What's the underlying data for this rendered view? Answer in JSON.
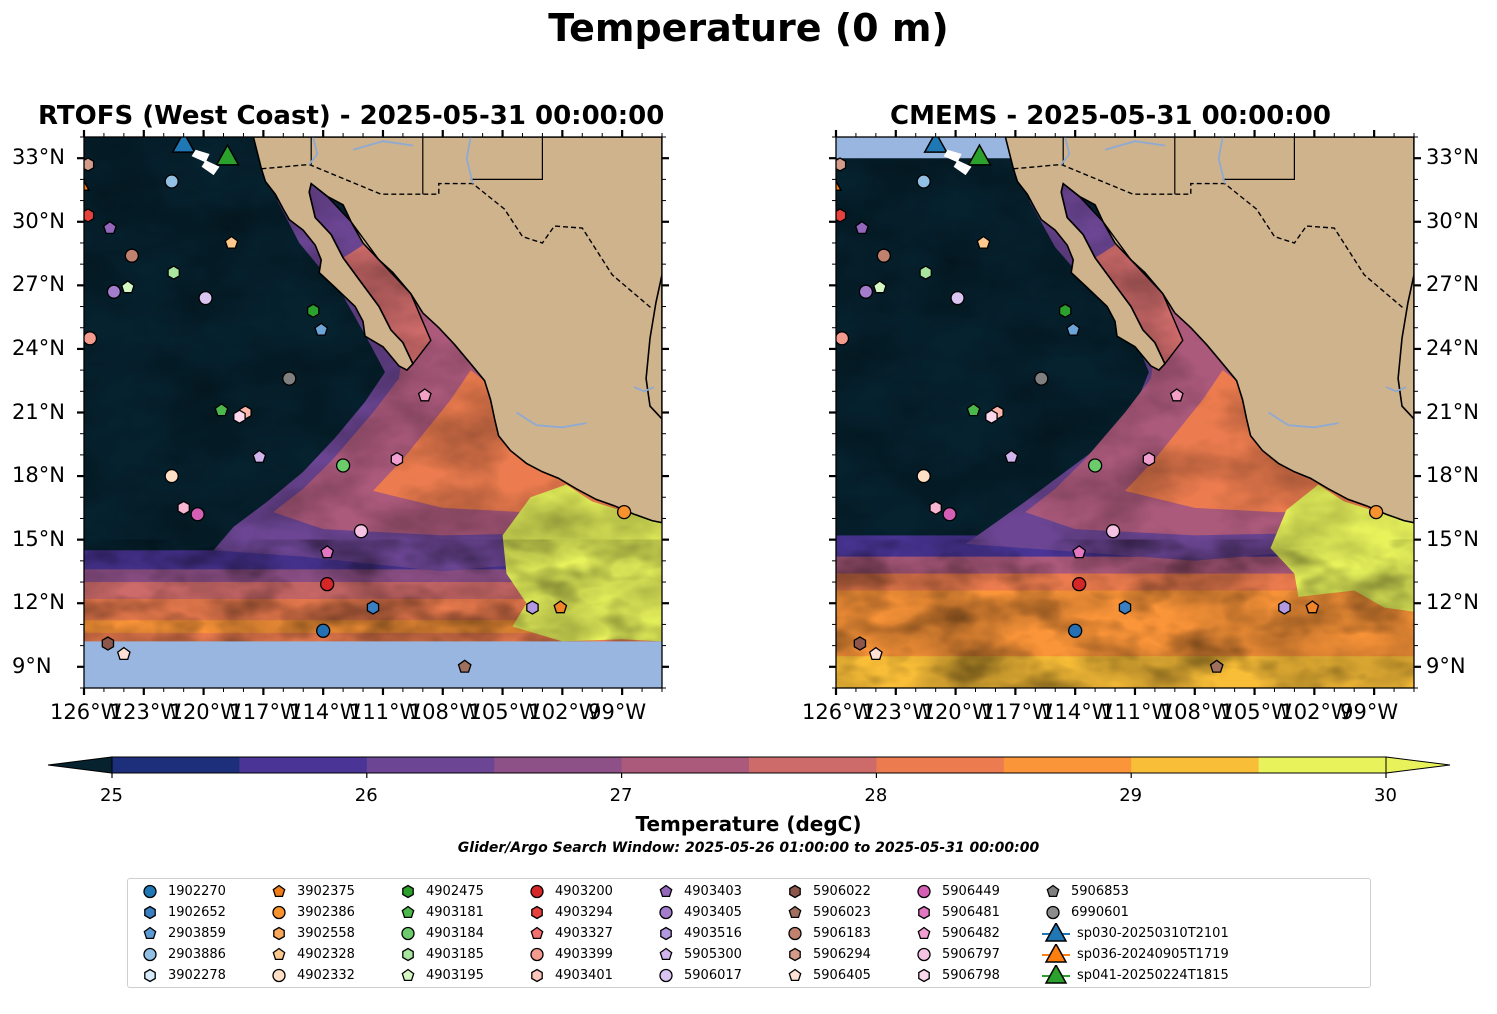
{
  "figure": {
    "suptitle": "Temperature (0 m)",
    "colors": {
      "land": "#cfb38c",
      "nodata": "#98b6e0",
      "coast": "#000000",
      "rivers": "#8eaad3"
    }
  },
  "panels": [
    {
      "title": "RTOFS (West Coast) - 2025-05-31 00:00:00",
      "variant": "rtofs"
    },
    {
      "title": "CMEMS - 2025-05-31 00:00:00",
      "variant": "cmems"
    }
  ],
  "axes": {
    "lon_ticks": [
      "126°W",
      "123°W",
      "120°W",
      "117°W",
      "114°W",
      "111°W",
      "108°W",
      "105°W",
      "102°W",
      "99°W"
    ],
    "lat_ticks": [
      "33°N",
      "30°N",
      "27°N",
      "24°N",
      "21°N",
      "18°N",
      "15°N",
      "12°N",
      "9°N"
    ],
    "lon_range": [
      -126,
      -97
    ],
    "lat_range": [
      8,
      34
    ]
  },
  "colorbar": {
    "ticks": [
      "25",
      "26",
      "27",
      "28",
      "29",
      "30"
    ],
    "range": [
      25,
      30
    ],
    "step": 0.5,
    "colors": [
      "#06222f",
      "#1d2f7b",
      "#4a3596",
      "#6c4694",
      "#8d5087",
      "#ac5a7c",
      "#cd6a6a",
      "#ec7c4f",
      "#fb9539",
      "#f9be38",
      "#e8f35c"
    ],
    "label": "Temperature (degC)",
    "subtitle": "Glider/Argo Search Window: 2025-05-26 01:00:00 to 2025-05-31 00:00:00"
  },
  "markers": [
    {
      "lon": -114.0,
      "lat": 10.7,
      "shape": "circle",
      "color": "#2470b4"
    },
    {
      "lon": -111.5,
      "lat": 11.8,
      "shape": "hexagon",
      "color": "#3a7fc2"
    },
    {
      "lon": -114.1,
      "lat": 24.9,
      "shape": "pentagon",
      "color": "#6da5d8"
    },
    {
      "lon": -121.6,
      "lat": 31.9,
      "shape": "circle",
      "color": "#92c0e4"
    },
    {
      "lon": -102.1,
      "lat": 11.8,
      "shape": "pentagon",
      "color": "#f28527"
    },
    {
      "lon": -98.9,
      "lat": 16.3,
      "shape": "circle",
      "color": "#f7922e"
    },
    {
      "lon": -118.6,
      "lat": 29.0,
      "shape": "pentagon",
      "color": "#fcc88b"
    },
    {
      "lon": -121.6,
      "lat": 18.0,
      "shape": "circle",
      "color": "#fde0c5"
    },
    {
      "lon": -114.5,
      "lat": 25.8,
      "shape": "hexagon",
      "color": "#2ca02c"
    },
    {
      "lon": -119.1,
      "lat": 21.1,
      "shape": "pentagon",
      "color": "#4cb84c"
    },
    {
      "lon": -113.0,
      "lat": 18.5,
      "shape": "circle",
      "color": "#6ccc6c"
    },
    {
      "lon": -121.5,
      "lat": 27.6,
      "shape": "hexagon",
      "color": "#a8e6a0"
    },
    {
      "lon": -123.8,
      "lat": 26.9,
      "shape": "pentagon",
      "color": "#d4f7c4"
    },
    {
      "lon": -113.8,
      "lat": 12.9,
      "shape": "circle",
      "color": "#d62728"
    },
    {
      "lon": -125.8,
      "lat": 30.3,
      "shape": "hexagon",
      "color": "#e6413d"
    },
    {
      "lon": -108.9,
      "lat": 21.8,
      "shape": "pentagon",
      "color": "#f3a0c6"
    },
    {
      "lon": -125.7,
      "lat": 24.5,
      "shape": "circle",
      "color": "#f49b8f"
    },
    {
      "lon": -117.9,
      "lat": 21.0,
      "shape": "hexagon",
      "color": "#fcb6aa"
    },
    {
      "lon": -124.7,
      "lat": 29.7,
      "shape": "pentagon",
      "color": "#9467bd"
    },
    {
      "lon": -124.5,
      "lat": 26.7,
      "shape": "circle",
      "color": "#a47ccc"
    },
    {
      "lon": -103.5,
      "lat": 11.8,
      "shape": "hexagon",
      "color": "#b39ae0"
    },
    {
      "lon": -117.2,
      "lat": 18.9,
      "shape": "pentagon",
      "color": "#d1b6ee"
    },
    {
      "lon": -119.9,
      "lat": 26.4,
      "shape": "circle",
      "color": "#dac4f2"
    },
    {
      "lon": -124.8,
      "lat": 10.1,
      "shape": "hexagon",
      "color": "#8c564b"
    },
    {
      "lon": -106.9,
      "lat": 9.0,
      "shape": "pentagon",
      "color": "#a0705f"
    },
    {
      "lon": -123.6,
      "lat": 28.4,
      "shape": "circle",
      "color": "#c0826e"
    },
    {
      "lon": -125.8,
      "lat": 32.7,
      "shape": "hexagon",
      "color": "#d39c8a"
    },
    {
      "lon": -124.0,
      "lat": 9.6,
      "shape": "pentagon",
      "color": "#fde0d6"
    },
    {
      "lon": -120.3,
      "lat": 16.2,
      "shape": "circle",
      "color": "#d55fb4"
    },
    {
      "lon": -121.0,
      "lat": 16.5,
      "shape": "hexagon",
      "color": "#f7b6d2"
    },
    {
      "lon": -113.8,
      "lat": 14.4,
      "shape": "pentagon",
      "color": "#e377c2"
    },
    {
      "lon": -112.1,
      "lat": 15.4,
      "shape": "circle",
      "color": "#f6c3e4"
    },
    {
      "lon": -118.2,
      "lat": 20.8,
      "shape": "hexagon",
      "color": "#fbd7ec"
    },
    {
      "lon": -110.3,
      "lat": 18.8,
      "shape": "hexagon",
      "color": "#f09fd0"
    },
    {
      "lon": -115.7,
      "lat": 22.6,
      "shape": "circle",
      "color": "#7f7f7f"
    }
  ],
  "gliders": [
    {
      "lon": -121.0,
      "lat": 33.7,
      "color": "#1f77b4"
    },
    {
      "lon": -126.3,
      "lat": 31.9,
      "color": "#ff7f0e"
    },
    {
      "lon": -118.8,
      "lat": 33.1,
      "color": "#2ca02c"
    }
  ],
  "legend": [
    {
      "label": "1902270",
      "shape": "circle",
      "color": "#1f77b4"
    },
    {
      "label": "1902652",
      "shape": "hexagon",
      "color": "#3a7fc2"
    },
    {
      "label": "2903859",
      "shape": "pentagon",
      "color": "#5a9bd4"
    },
    {
      "label": "2903886",
      "shape": "circle",
      "color": "#92c0e4"
    },
    {
      "label": "3902278",
      "shape": "hexagon",
      "color": "#d7eaf9"
    },
    {
      "label": "3902375",
      "shape": "pentagon",
      "color": "#f07d1a"
    },
    {
      "label": "3902386",
      "shape": "circle",
      "color": "#f7922e"
    },
    {
      "label": "3902558",
      "shape": "hexagon",
      "color": "#fba85a"
    },
    {
      "label": "4902328",
      "shape": "pentagon",
      "color": "#fcc88b"
    },
    {
      "label": "4902332",
      "shape": "circle",
      "color": "#fde0c5"
    },
    {
      "label": "4902475",
      "shape": "hexagon",
      "color": "#2ca02c"
    },
    {
      "label": "4903181",
      "shape": "pentagon",
      "color": "#4cb84c"
    },
    {
      "label": "4903184",
      "shape": "circle",
      "color": "#6ccc6c"
    },
    {
      "label": "4903185",
      "shape": "hexagon",
      "color": "#a8e6a0"
    },
    {
      "label": "4903195",
      "shape": "pentagon",
      "color": "#d4f7c4"
    },
    {
      "label": "4903200",
      "shape": "circle",
      "color": "#d62728"
    },
    {
      "label": "4903294",
      "shape": "hexagon",
      "color": "#e6413d"
    },
    {
      "label": "4903327",
      "shape": "pentagon",
      "color": "#f27070"
    },
    {
      "label": "4903399",
      "shape": "circle",
      "color": "#f49b8f"
    },
    {
      "label": "4903401",
      "shape": "hexagon",
      "color": "#fcc6bc"
    },
    {
      "label": "4903403",
      "shape": "pentagon",
      "color": "#9467bd"
    },
    {
      "label": "4903405",
      "shape": "circle",
      "color": "#a47ccc"
    },
    {
      "label": "4903516",
      "shape": "hexagon",
      "color": "#b39ae0"
    },
    {
      "label": "5905300",
      "shape": "pentagon",
      "color": "#d1b6ee"
    },
    {
      "label": "5906017",
      "shape": "circle",
      "color": "#dac4f2"
    },
    {
      "label": "5906022",
      "shape": "hexagon",
      "color": "#8c564b"
    },
    {
      "label": "5906023",
      "shape": "pentagon",
      "color": "#a0705f"
    },
    {
      "label": "5906183",
      "shape": "circle",
      "color": "#c0826e"
    },
    {
      "label": "5906294",
      "shape": "hexagon",
      "color": "#d39c8a"
    },
    {
      "label": "5906405",
      "shape": "pentagon",
      "color": "#fde0d6"
    },
    {
      "label": "5906449",
      "shape": "circle",
      "color": "#d55fb4"
    },
    {
      "label": "5906481",
      "shape": "hexagon",
      "color": "#e377c2"
    },
    {
      "label": "5906482",
      "shape": "pentagon",
      "color": "#f09fd0"
    },
    {
      "label": "5906797",
      "shape": "circle",
      "color": "#f6c3e4"
    },
    {
      "label": "5906798",
      "shape": "hexagon",
      "color": "#fbd7ec"
    },
    {
      "label": "5906853",
      "shape": "pentagon",
      "color": "#7f7f7f"
    },
    {
      "label": "6990601",
      "shape": "circle",
      "color": "#8c8c8c"
    },
    {
      "label": "sp030-20250310T2101",
      "shape": "glider",
      "color": "#1f77b4"
    },
    {
      "label": "sp036-20240905T1719",
      "shape": "glider",
      "color": "#ff7f0e"
    },
    {
      "label": "sp041-20250224T1815",
      "shape": "glider",
      "color": "#2ca02c"
    }
  ]
}
